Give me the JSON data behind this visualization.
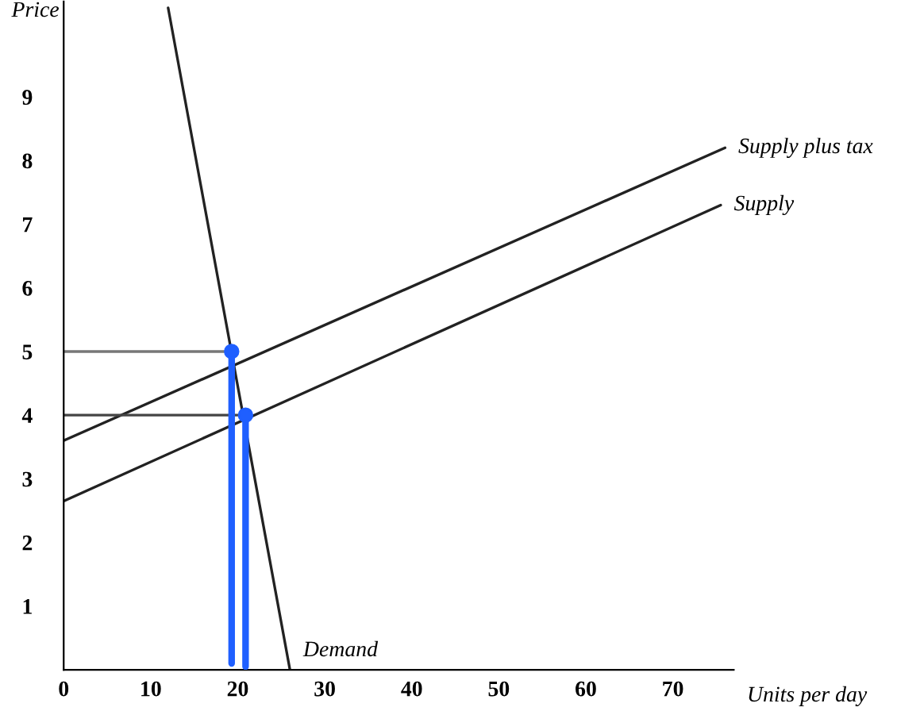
{
  "chart_data": {
    "type": "line",
    "xlabel": "Units per day",
    "ylabel": "Price",
    "xlim": [
      0,
      77
    ],
    "ylim": [
      0,
      10.5
    ],
    "xticks": [
      0,
      10,
      20,
      30,
      40,
      50,
      60,
      70
    ],
    "yticks": [
      1,
      2,
      3,
      4,
      5,
      6,
      7,
      8,
      9
    ],
    "grid": false,
    "legend": false,
    "series": [
      {
        "name": "Supply plus tax",
        "color": "#222222",
        "x": [
          0,
          76
        ],
        "values": [
          3.6,
          8.2
        ]
      },
      {
        "name": "Supply",
        "color": "#222222",
        "x": [
          0,
          75.5
        ],
        "values": [
          2.65,
          7.3
        ]
      },
      {
        "name": "Demand",
        "color": "#222222",
        "x": [
          12,
          26
        ],
        "values": [
          10.4,
          0
        ]
      },
      {
        "color": "#777777",
        "x": [
          0,
          19.3
        ],
        "values": [
          5,
          5
        ]
      },
      {
        "color": "#444444",
        "x": [
          0,
          20.9
        ],
        "values": [
          4,
          4
        ]
      },
      {
        "color": "#1f5fff",
        "x": [
          19.3,
          19.3
        ],
        "values": [
          5,
          0.1
        ],
        "marker": "circle"
      },
      {
        "color": "#1f5fff",
        "x": [
          20.9,
          20.9
        ],
        "values": [
          4,
          0.05
        ],
        "marker": "circle"
      }
    ]
  }
}
